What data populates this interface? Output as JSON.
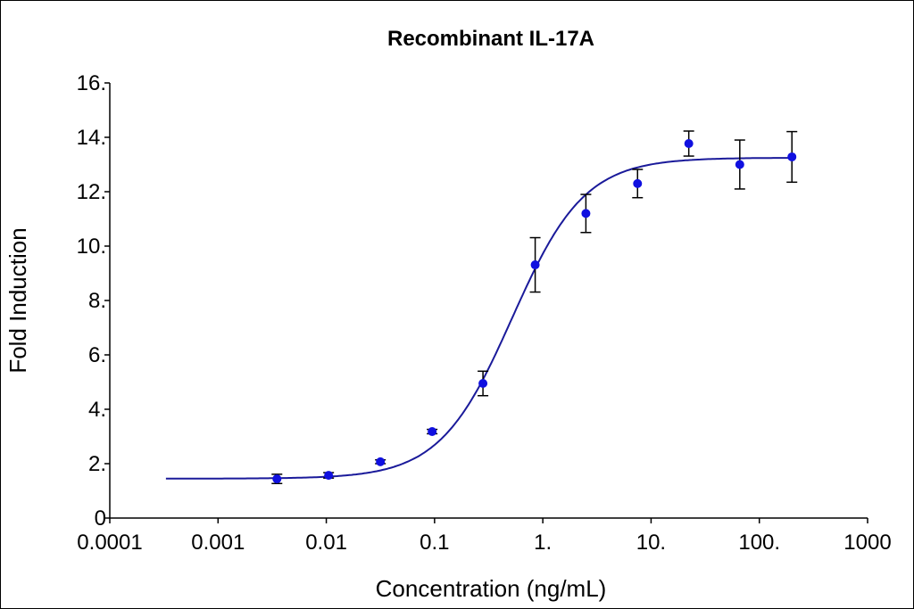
{
  "chart_data": {
    "type": "scatter",
    "title": "Recombinant IL-17A",
    "xlabel": "Concentration (ng/mL)",
    "ylabel": "Fold Induction",
    "x_scale": "log",
    "xlim": [
      0.0001,
      1000
    ],
    "ylim": [
      0,
      16
    ],
    "x_tick_values": [
      0.0001,
      0.001,
      0.01,
      0.1,
      1,
      10,
      100,
      1000
    ],
    "x_tick_labels": [
      "0.0001",
      "0.001",
      "0.01",
      "0.1",
      "1.",
      "10.",
      "100.",
      "1000"
    ],
    "y_tick_values": [
      0,
      2,
      4,
      6,
      8,
      10,
      12,
      14,
      16
    ],
    "y_tick_labels": [
      "0",
      "2.",
      "4.",
      "6.",
      "8.",
      "10.",
      "12.",
      "14.",
      "16."
    ],
    "grid": false,
    "legend": "none",
    "colors": {
      "points": "#1010e0",
      "curve": "#1a1a9a",
      "error_bars": "#000000"
    },
    "points": {
      "x": [
        0.0035,
        0.0105,
        0.0316,
        0.095,
        0.28,
        0.85,
        2.5,
        7.5,
        22.3,
        66,
        200
      ],
      "y": [
        1.44,
        1.57,
        2.07,
        3.18,
        4.95,
        9.31,
        11.2,
        12.3,
        13.77,
        13.0,
        13.28
      ],
      "error": [
        0.17,
        0.1,
        0.07,
        0.08,
        0.45,
        1.0,
        0.7,
        0.52,
        0.46,
        0.9,
        0.93
      ]
    },
    "fit": {
      "model": "4PL",
      "bottom": 1.45,
      "top": 13.25,
      "ec50": 0.52,
      "hill": 1.3,
      "x_range": [
        0.00033,
        200
      ]
    }
  }
}
